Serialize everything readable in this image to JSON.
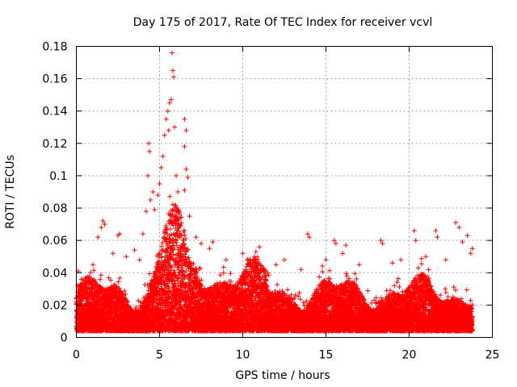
{
  "chart_data": {
    "type": "scatter",
    "title": "Day 175 of 2017, Rate Of TEC Index for receiver vcvl",
    "xlabel": "GPS time / hours",
    "ylabel": "ROTI / TECUs",
    "xlim": [
      0,
      25
    ],
    "ylim": [
      0,
      0.18
    ],
    "xticks": [
      "0",
      "5",
      "10",
      "15",
      "20",
      "25"
    ],
    "yticks": [
      "0",
      "0.02",
      "0.04",
      "0.06",
      "0.08",
      "0.1",
      "0.12",
      "0.14",
      "0.16",
      "0.18"
    ],
    "grid": true,
    "marker": "plus",
    "color": "#ff0000",
    "series": [
      {
        "values": [
          [
            0.1,
            0.041
          ],
          [
            0.3,
            0.036
          ],
          [
            1.0,
            0.045
          ],
          [
            1.3,
            0.062
          ],
          [
            1.5,
            0.068
          ],
          [
            1.6,
            0.072
          ],
          [
            1.7,
            0.07
          ],
          [
            2.2,
            0.052
          ],
          [
            2.5,
            0.063
          ],
          [
            2.6,
            0.064
          ],
          [
            3.0,
            0.05
          ],
          [
            3.5,
            0.054
          ],
          [
            3.8,
            0.048
          ],
          [
            4.0,
            0.064
          ],
          [
            4.2,
            0.078
          ],
          [
            4.3,
            0.1
          ],
          [
            4.35,
            0.12
          ],
          [
            4.4,
            0.115
          ],
          [
            4.45,
            0.085
          ],
          [
            4.6,
            0.09
          ],
          [
            4.7,
            0.079
          ],
          [
            4.9,
            0.088
          ],
          [
            5.0,
            0.095
          ],
          [
            5.1,
            0.105
          ],
          [
            5.2,
            0.112
          ],
          [
            5.3,
            0.125
          ],
          [
            5.4,
            0.135
          ],
          [
            5.5,
            0.14
          ],
          [
            5.55,
            0.128
          ],
          [
            5.6,
            0.145
          ],
          [
            5.7,
            0.147
          ],
          [
            5.75,
            0.176
          ],
          [
            5.8,
            0.165
          ],
          [
            5.85,
            0.161
          ],
          [
            5.9,
            0.13
          ],
          [
            6.0,
            0.1
          ],
          [
            6.1,
            0.09
          ],
          [
            6.5,
            0.135
          ],
          [
            6.6,
            0.128
          ],
          [
            6.5,
            0.118
          ],
          [
            6.6,
            0.104
          ],
          [
            6.7,
            0.099
          ],
          [
            6.5,
            0.091
          ],
          [
            6.8,
            0.075
          ],
          [
            7.2,
            0.062
          ],
          [
            7.5,
            0.058
          ],
          [
            8.0,
            0.055
          ],
          [
            8.2,
            0.059
          ],
          [
            9.0,
            0.048
          ],
          [
            10.0,
            0.052
          ],
          [
            10.7,
            0.05
          ],
          [
            11.0,
            0.056
          ],
          [
            12.0,
            0.045
          ],
          [
            12.5,
            0.048
          ],
          [
            13.5,
            0.042
          ],
          [
            13.9,
            0.064
          ],
          [
            14.0,
            0.062
          ],
          [
            15.0,
            0.048
          ],
          [
            15.5,
            0.06
          ],
          [
            15.6,
            0.058
          ],
          [
            16.0,
            0.052
          ],
          [
            16.2,
            0.057
          ],
          [
            17.0,
            0.045
          ],
          [
            18.3,
            0.06
          ],
          [
            18.4,
            0.058
          ],
          [
            19.0,
            0.046
          ],
          [
            19.5,
            0.048
          ],
          [
            20.3,
            0.066
          ],
          [
            20.4,
            0.06
          ],
          [
            21.0,
            0.05
          ],
          [
            21.6,
            0.066
          ],
          [
            21.7,
            0.062
          ],
          [
            22.2,
            0.048
          ],
          [
            22.8,
            0.071
          ],
          [
            23.0,
            0.068
          ],
          [
            23.2,
            0.059
          ],
          [
            23.5,
            0.063
          ],
          [
            23.7,
            0.052
          ],
          [
            23.8,
            0.055
          ]
        ]
      }
    ]
  }
}
